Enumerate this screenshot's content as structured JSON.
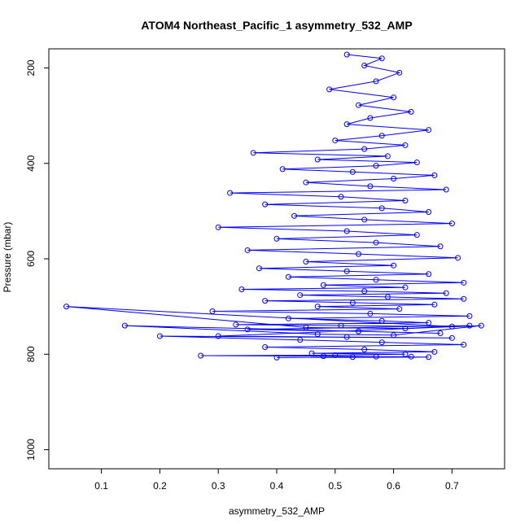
{
  "chart_data": {
    "type": "scatter",
    "title": "ATOM4 Northeast_Pacific_1 asymmetry_532_AMP",
    "xlabel": "asymmetry_532_AMP",
    "ylabel": "Pressure (mbar)",
    "xlim": [
      0.01,
      0.79
    ],
    "ylim": [
      1040,
      160
    ],
    "y_reversed": true,
    "x_ticks": [
      0.1,
      0.2,
      0.3,
      0.4,
      0.5,
      0.6,
      0.7
    ],
    "y_ticks": [
      200,
      400,
      600,
      800,
      1000
    ],
    "x_tick_labels": [
      "0.1",
      "0.2",
      "0.3",
      "0.4",
      "0.5",
      "0.6",
      "0.7"
    ],
    "y_tick_labels": [
      "200",
      "400",
      "600",
      "800",
      "1000"
    ],
    "grid": false,
    "legend": "none",
    "marker": "open-circle",
    "connected": true,
    "color": "#0000ff",
    "series": [
      {
        "x": [
          0.52,
          0.58,
          0.55,
          0.61,
          0.57,
          0.49,
          0.6,
          0.54,
          0.63,
          0.56,
          0.52,
          0.66,
          0.58,
          0.5,
          0.62,
          0.55,
          0.36,
          0.59,
          0.47,
          0.64,
          0.57,
          0.41,
          0.53,
          0.67,
          0.6,
          0.45,
          0.56,
          0.69,
          0.32,
          0.51,
          0.62,
          0.38,
          0.58,
          0.66,
          0.43,
          0.55,
          0.7,
          0.3,
          0.52,
          0.64,
          0.4,
          0.57,
          0.68,
          0.35,
          0.54,
          0.71,
          0.45,
          0.6,
          0.37,
          0.52,
          0.66,
          0.42,
          0.57,
          0.72,
          0.48,
          0.62,
          0.34,
          0.55,
          0.69,
          0.44,
          0.59,
          0.72,
          0.38,
          0.53,
          0.67,
          0.47,
          0.61,
          0.29,
          0.56,
          0.73,
          0.42,
          0.58,
          0.66,
          0.33,
          0.51,
          0.7,
          0.04,
          0.45,
          0.62,
          0.73,
          0.35,
          0.54,
          0.68,
          0.14,
          0.47,
          0.6,
          0.75,
          0.3,
          0.52,
          0.7,
          0.2,
          0.44,
          0.58,
          0.72,
          0.38,
          0.55,
          0.67,
          0.46,
          0.62,
          0.5,
          0.27,
          0.48,
          0.57,
          0.66,
          0.4,
          0.53,
          0.63
        ],
        "y": [
          172,
          180,
          195,
          210,
          228,
          245,
          262,
          278,
          292,
          305,
          318,
          330,
          342,
          352,
          362,
          370,
          378,
          385,
          392,
          398,
          405,
          412,
          418,
          425,
          432,
          440,
          448,
          455,
          462,
          470,
          478,
          486,
          494,
          502,
          510,
          518,
          526,
          534,
          542,
          550,
          558,
          566,
          574,
          582,
          590,
          598,
          606,
          614,
          620,
          626,
          632,
          638,
          644,
          650,
          655,
          660,
          664,
          668,
          672,
          676,
          680,
          684,
          688,
          692,
          696,
          700,
          705,
          710,
          715,
          720,
          725,
          730,
          734,
          738,
          740,
          742,
          700,
          744,
          746,
          740,
          748,
          752,
          756,
          740,
          758,
          760,
          740,
          762,
          764,
          766,
          762,
          770,
          775,
          780,
          785,
          790,
          795,
          798,
          800,
          802,
          803,
          804,
          805,
          806,
          807,
          806,
          805
        ]
      }
    ]
  }
}
